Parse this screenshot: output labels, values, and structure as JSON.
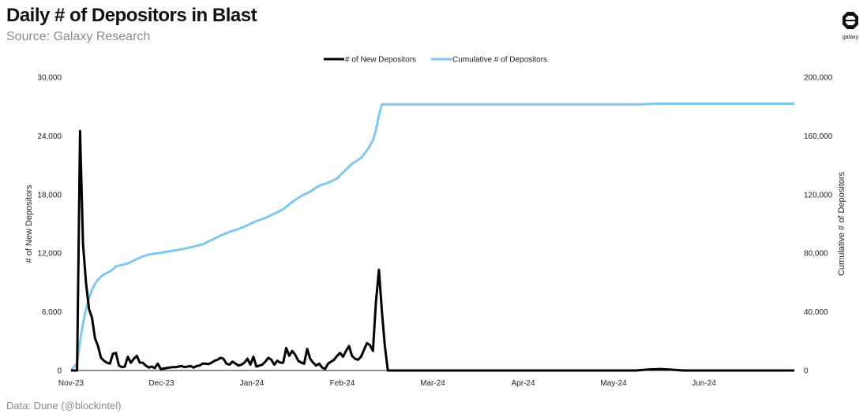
{
  "title": "Daily # of Depositors in Blast",
  "subtitle": "Source: Galaxy Research",
  "footer": "Data: Dune (@blockintel)",
  "logo_text": "galaxy",
  "chart_data": {
    "type": "line",
    "x_tick_labels": [
      "Nov-23",
      "Dec-23",
      "Jan-24",
      "Feb-24",
      "Mar-24",
      "Apr-24",
      "May-24",
      "Jun-24"
    ],
    "x_start": "2023-11-01",
    "x_end": "2024-06-30",
    "y_left": {
      "label": "# of New Depositors",
      "range": [
        0,
        30000
      ],
      "ticks": [
        "0",
        "6,000",
        "12,000",
        "18,000",
        "24,000",
        "30,000"
      ]
    },
    "y_right": {
      "label": "Cumulative # of Depositors",
      "range": [
        0,
        200000
      ],
      "ticks": [
        "0",
        "40,000",
        "80,000",
        "120,000",
        "160,000",
        "200,000"
      ]
    },
    "grid": false,
    "legend_position": "top-center",
    "series": [
      {
        "name": "# of New Depositors",
        "axis": "left",
        "color": "#000000",
        "points": [
          [
            "2023-11-01",
            0
          ],
          [
            "2023-11-03",
            0
          ],
          [
            "2023-11-04",
            24500
          ],
          [
            "2023-11-05",
            13000
          ],
          [
            "2023-11-06",
            9000
          ],
          [
            "2023-11-07",
            6300
          ],
          [
            "2023-11-08",
            5400
          ],
          [
            "2023-11-09",
            3300
          ],
          [
            "2023-11-10",
            2500
          ],
          [
            "2023-11-11",
            1300
          ],
          [
            "2023-11-12",
            1000
          ],
          [
            "2023-11-13",
            800
          ],
          [
            "2023-11-14",
            700
          ],
          [
            "2023-11-15",
            1700
          ],
          [
            "2023-11-16",
            1800
          ],
          [
            "2023-11-17",
            500
          ],
          [
            "2023-11-18",
            350
          ],
          [
            "2023-11-19",
            400
          ],
          [
            "2023-11-20",
            1400
          ],
          [
            "2023-11-21",
            800
          ],
          [
            "2023-11-22",
            1200
          ],
          [
            "2023-11-23",
            1500
          ],
          [
            "2023-11-24",
            800
          ],
          [
            "2023-11-25",
            800
          ],
          [
            "2023-11-26",
            500
          ],
          [
            "2023-11-27",
            300
          ],
          [
            "2023-11-28",
            400
          ],
          [
            "2023-11-29",
            250
          ],
          [
            "2023-11-30",
            700
          ],
          [
            "2023-12-01",
            150
          ],
          [
            "2023-12-02",
            200
          ],
          [
            "2023-12-03",
            250
          ],
          [
            "2023-12-04",
            300
          ],
          [
            "2023-12-05",
            350
          ],
          [
            "2023-12-06",
            350
          ],
          [
            "2023-12-07",
            400
          ],
          [
            "2023-12-08",
            450
          ],
          [
            "2023-12-09",
            350
          ],
          [
            "2023-12-10",
            400
          ],
          [
            "2023-12-11",
            450
          ],
          [
            "2023-12-12",
            300
          ],
          [
            "2023-12-13",
            450
          ],
          [
            "2023-12-14",
            500
          ],
          [
            "2023-12-15",
            700
          ],
          [
            "2023-12-16",
            700
          ],
          [
            "2023-12-17",
            650
          ],
          [
            "2023-12-18",
            800
          ],
          [
            "2023-12-19",
            1000
          ],
          [
            "2023-12-20",
            1100
          ],
          [
            "2023-12-21",
            1300
          ],
          [
            "2023-12-22",
            1200
          ],
          [
            "2023-12-23",
            700
          ],
          [
            "2023-12-24",
            600
          ],
          [
            "2023-12-25",
            900
          ],
          [
            "2023-12-26",
            700
          ],
          [
            "2023-12-27",
            500
          ],
          [
            "2023-12-28",
            600
          ],
          [
            "2023-12-29",
            800
          ],
          [
            "2023-12-30",
            1200
          ],
          [
            "2023-12-31",
            600
          ],
          [
            "2024-01-01",
            1400
          ],
          [
            "2024-01-02",
            400
          ],
          [
            "2024-01-03",
            500
          ],
          [
            "2024-01-04",
            600
          ],
          [
            "2024-01-05",
            900
          ],
          [
            "2024-01-06",
            1300
          ],
          [
            "2024-01-07",
            1100
          ],
          [
            "2024-01-08",
            600
          ],
          [
            "2024-01-09",
            1000
          ],
          [
            "2024-01-10",
            800
          ],
          [
            "2024-01-11",
            800
          ],
          [
            "2024-01-12",
            2300
          ],
          [
            "2024-01-13",
            1500
          ],
          [
            "2024-01-14",
            2000
          ],
          [
            "2024-01-15",
            1600
          ],
          [
            "2024-01-16",
            1000
          ],
          [
            "2024-01-17",
            800
          ],
          [
            "2024-01-18",
            700
          ],
          [
            "2024-01-19",
            2200
          ],
          [
            "2024-01-20",
            1200
          ],
          [
            "2024-01-21",
            800
          ],
          [
            "2024-01-22",
            500
          ],
          [
            "2024-01-23",
            700
          ],
          [
            "2024-01-24",
            300
          ],
          [
            "2024-01-25",
            150
          ],
          [
            "2024-01-26",
            700
          ],
          [
            "2024-01-27",
            900
          ],
          [
            "2024-01-28",
            1100
          ],
          [
            "2024-01-29",
            1500
          ],
          [
            "2024-01-30",
            1800
          ],
          [
            "2024-01-31",
            1400
          ],
          [
            "2024-02-01",
            2000
          ],
          [
            "2024-02-02",
            2500
          ],
          [
            "2024-02-03",
            1500
          ],
          [
            "2024-02-04",
            1200
          ],
          [
            "2024-02-05",
            1100
          ],
          [
            "2024-02-06",
            1400
          ],
          [
            "2024-02-07",
            2100
          ],
          [
            "2024-02-08",
            2800
          ],
          [
            "2024-02-09",
            2600
          ],
          [
            "2024-02-10",
            2000
          ],
          [
            "2024-02-11",
            7000
          ],
          [
            "2024-02-12",
            10300
          ],
          [
            "2024-02-13",
            6000
          ],
          [
            "2024-02-14",
            2500
          ],
          [
            "2024-02-15",
            0
          ],
          [
            "2024-05-08",
            0
          ],
          [
            "2024-05-12",
            100
          ],
          [
            "2024-05-16",
            150
          ],
          [
            "2024-05-20",
            80
          ],
          [
            "2024-05-24",
            0
          ],
          [
            "2024-06-30",
            0
          ]
        ]
      },
      {
        "name": "Cumulative # of Depositors",
        "axis": "right",
        "color": "#7dc8f0",
        "points": [
          [
            "2023-11-01",
            0
          ],
          [
            "2023-11-03",
            5000
          ],
          [
            "2023-11-04",
            20000
          ],
          [
            "2023-11-05",
            32000
          ],
          [
            "2023-11-06",
            42000
          ],
          [
            "2023-11-07",
            49000
          ],
          [
            "2023-11-08",
            55000
          ],
          [
            "2023-11-09",
            59000
          ],
          [
            "2023-11-10",
            62000
          ],
          [
            "2023-11-11",
            64000
          ],
          [
            "2023-11-12",
            65500
          ],
          [
            "2023-11-13",
            66500
          ],
          [
            "2023-11-14",
            67500
          ],
          [
            "2023-11-15",
            69000
          ],
          [
            "2023-11-16",
            71000
          ],
          [
            "2023-11-18",
            72000
          ],
          [
            "2023-11-20",
            73000
          ],
          [
            "2023-11-22",
            75000
          ],
          [
            "2023-11-24",
            77000
          ],
          [
            "2023-11-26",
            78500
          ],
          [
            "2023-11-28",
            79500
          ],
          [
            "2023-11-30",
            80000
          ],
          [
            "2023-12-03",
            81000
          ],
          [
            "2023-12-06",
            82000
          ],
          [
            "2023-12-09",
            83000
          ],
          [
            "2023-12-12",
            84500
          ],
          [
            "2023-12-15",
            86000
          ],
          [
            "2023-12-18",
            89000
          ],
          [
            "2023-12-21",
            92000
          ],
          [
            "2023-12-24",
            94500
          ],
          [
            "2023-12-27",
            96500
          ],
          [
            "2023-12-30",
            99000
          ],
          [
            "2024-01-02",
            102000
          ],
          [
            "2024-01-05",
            104000
          ],
          [
            "2024-01-08",
            107000
          ],
          [
            "2024-01-11",
            110000
          ],
          [
            "2024-01-14",
            115000
          ],
          [
            "2024-01-17",
            119000
          ],
          [
            "2024-01-20",
            122000
          ],
          [
            "2024-01-23",
            126000
          ],
          [
            "2024-01-26",
            128000
          ],
          [
            "2024-01-29",
            131000
          ],
          [
            "2024-02-01",
            137000
          ],
          [
            "2024-02-03",
            141000
          ],
          [
            "2024-02-06",
            145000
          ],
          [
            "2024-02-08",
            150000
          ],
          [
            "2024-02-10",
            157000
          ],
          [
            "2024-02-11",
            164000
          ],
          [
            "2024-02-12",
            174000
          ],
          [
            "2024-02-13",
            181500
          ],
          [
            "2024-03-01",
            181500
          ],
          [
            "2024-05-08",
            181500
          ],
          [
            "2024-05-12",
            181700
          ],
          [
            "2024-05-16",
            182000
          ],
          [
            "2024-06-30",
            182000
          ]
        ]
      }
    ]
  }
}
